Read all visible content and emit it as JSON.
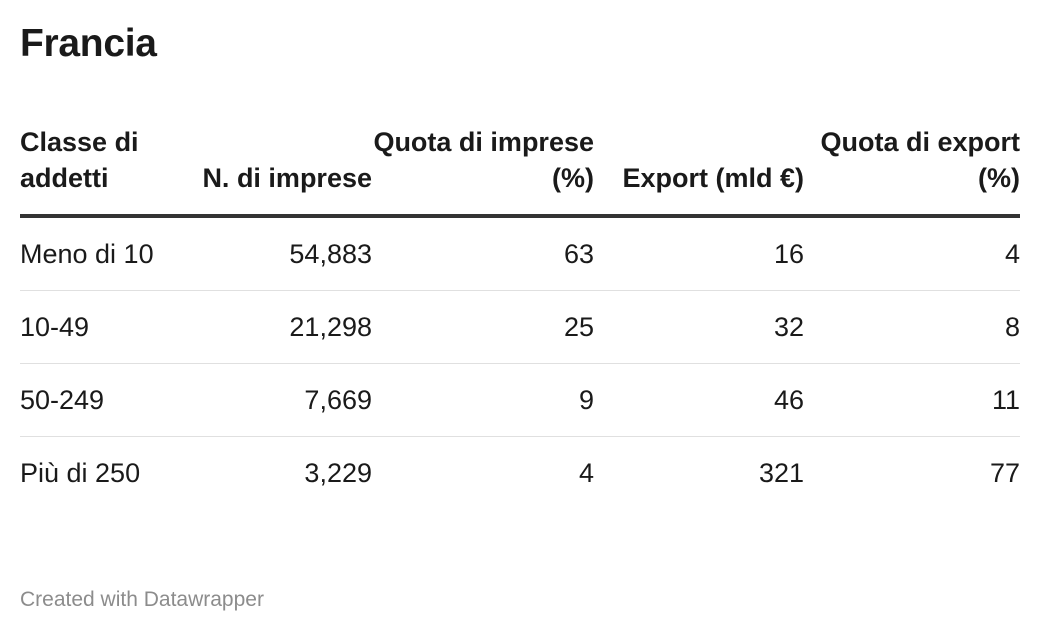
{
  "title": "Francia",
  "footer": "Created with Datawrapper",
  "chart_data": {
    "type": "table",
    "title": "Francia",
    "columns": [
      "Classe di addetti",
      "N. di imprese",
      "Quota di imprese (%)",
      "Export (mld €)",
      "Quota di export (%)"
    ],
    "rows": [
      [
        "Meno di 10",
        "54,883",
        "63",
        "16",
        "4"
      ],
      [
        "10-49",
        "21,298",
        "25",
        "32",
        "8"
      ],
      [
        "50-249",
        "7,669",
        "9",
        "46",
        "11"
      ],
      [
        "Più di 250",
        "3,229",
        "4",
        "321",
        "77"
      ]
    ]
  }
}
